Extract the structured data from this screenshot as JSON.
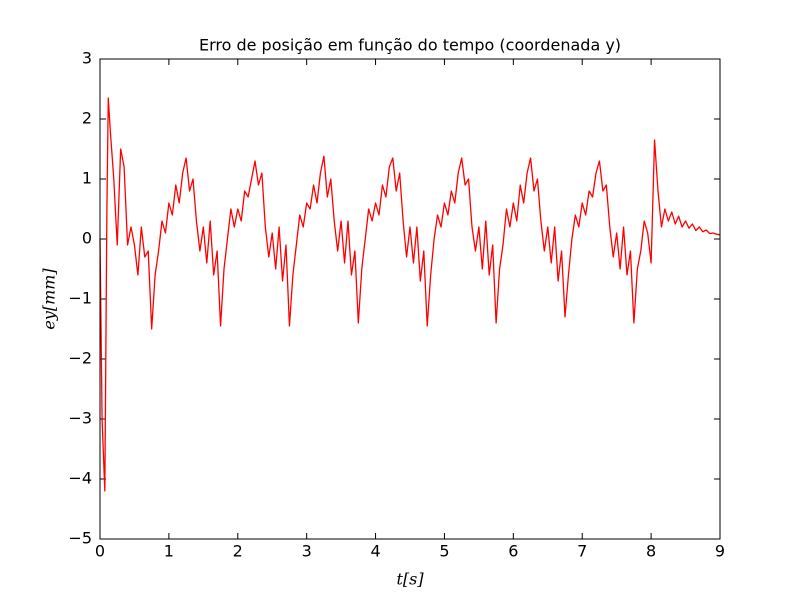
{
  "chart_data": {
    "type": "line",
    "title": "Erro de posição em função do tempo (coordenada y)",
    "xlabel": "t[s]",
    "ylabel": "ey[mm]",
    "color": "#ff0000",
    "xlim": [
      0,
      9
    ],
    "ylim": [
      -5,
      3
    ],
    "xticks": [
      0,
      1,
      2,
      3,
      4,
      5,
      6,
      7,
      8,
      9
    ],
    "yticks": [
      {
        "value": -5,
        "label": "−5"
      },
      {
        "value": -4,
        "label": "−4"
      },
      {
        "value": -3,
        "label": "−3"
      },
      {
        "value": -2,
        "label": "−2"
      },
      {
        "value": -1,
        "label": "−1"
      },
      0,
      1,
      2,
      3
    ],
    "x": [
      0,
      0.03,
      0.07,
      0.1,
      0.12,
      0.15,
      0.2,
      0.25,
      0.3,
      0.35,
      0.4,
      0.45,
      0.5,
      0.55,
      0.6,
      0.65,
      0.7,
      0.75,
      0.8,
      0.85,
      0.9,
      0.95,
      1,
      1.05,
      1.1,
      1.15,
      1.2,
      1.25,
      1.3,
      1.35,
      1.4,
      1.45,
      1.5,
      1.55,
      1.6,
      1.65,
      1.7,
      1.75,
      1.8,
      1.85,
      1.9,
      1.95,
      2,
      2.05,
      2.1,
      2.15,
      2.2,
      2.25,
      2.3,
      2.35,
      2.4,
      2.45,
      2.5,
      2.55,
      2.6,
      2.65,
      2.7,
      2.75,
      2.8,
      2.85,
      2.9,
      2.95,
      3,
      3.05,
      3.1,
      3.15,
      3.2,
      3.25,
      3.3,
      3.35,
      3.4,
      3.45,
      3.5,
      3.55,
      3.6,
      3.65,
      3.7,
      3.75,
      3.8,
      3.85,
      3.9,
      3.95,
      4,
      4.05,
      4.1,
      4.15,
      4.2,
      4.25,
      4.3,
      4.35,
      4.4,
      4.45,
      4.5,
      4.55,
      4.6,
      4.65,
      4.7,
      4.75,
      4.8,
      4.85,
      4.9,
      4.95,
      5,
      5.05,
      5.1,
      5.15,
      5.2,
      5.25,
      5.3,
      5.35,
      5.4,
      5.45,
      5.5,
      5.55,
      5.6,
      5.65,
      5.7,
      5.75,
      5.8,
      5.85,
      5.9,
      5.95,
      6,
      6.05,
      6.1,
      6.15,
      6.2,
      6.25,
      6.3,
      6.35,
      6.4,
      6.45,
      6.5,
      6.55,
      6.6,
      6.65,
      6.7,
      6.75,
      6.8,
      6.85,
      6.9,
      6.95,
      7,
      7.05,
      7.1,
      7.15,
      7.2,
      7.25,
      7.3,
      7.35,
      7.4,
      7.45,
      7.5,
      7.55,
      7.6,
      7.65,
      7.7,
      7.75,
      7.8,
      7.85,
      7.9,
      7.95,
      8,
      8.05,
      8.1,
      8.15,
      8.2,
      8.25,
      8.3,
      8.35,
      8.4,
      8.45,
      8.5,
      8.55,
      8.6,
      8.65,
      8.7,
      8.75,
      8.8,
      8.85,
      8.9,
      8.95,
      9
    ],
    "values": [
      0,
      -3,
      -4.2,
      0.5,
      2.35,
      1.8,
      1.0,
      -0.1,
      1.5,
      1.2,
      -0.1,
      0.2,
      -0.1,
      -0.6,
      0.2,
      -0.3,
      -0.2,
      -1.5,
      -0.6,
      -0.2,
      0.3,
      0.1,
      0.6,
      0.4,
      0.9,
      0.6,
      1.1,
      1.35,
      0.8,
      1.0,
      0.3,
      -0.2,
      0.2,
      -0.4,
      0.3,
      -0.6,
      -0.2,
      -1.45,
      -0.5,
      0.0,
      0.5,
      0.2,
      0.5,
      0.3,
      0.8,
      0.7,
      1.0,
      1.3,
      0.9,
      1.1,
      0.2,
      -0.3,
      0.1,
      -0.5,
      0.2,
      -0.7,
      -0.1,
      -1.45,
      -0.6,
      -0.1,
      0.4,
      0.2,
      0.6,
      0.5,
      0.9,
      0.6,
      1.1,
      1.38,
      0.7,
      1.0,
      0.3,
      -0.2,
      0.3,
      -0.4,
      0.3,
      -0.6,
      -0.2,
      -1.4,
      -0.5,
      0.0,
      0.5,
      0.3,
      0.6,
      0.4,
      0.9,
      0.7,
      1.2,
      1.35,
      0.8,
      1.1,
      0.3,
      -0.3,
      0.2,
      -0.4,
      0.2,
      -0.7,
      -0.2,
      -1.45,
      -0.6,
      0.0,
      0.4,
      0.2,
      0.6,
      0.4,
      0.8,
      0.6,
      1.1,
      1.35,
      0.9,
      1.0,
      0.2,
      -0.2,
      0.2,
      -0.5,
      0.3,
      -0.6,
      -0.1,
      -1.4,
      -0.5,
      -0.1,
      0.5,
      0.2,
      0.6,
      0.3,
      0.9,
      0.6,
      1.1,
      1.35,
      0.8,
      1.0,
      0.3,
      -0.2,
      0.2,
      -0.4,
      0.2,
      -0.7,
      -0.2,
      -1.3,
      -0.6,
      0.0,
      0.4,
      0.2,
      0.6,
      0.4,
      0.8,
      0.7,
      1.1,
      1.3,
      0.8,
      0.9,
      0.2,
      -0.3,
      0.1,
      -0.5,
      0.2,
      -0.6,
      -0.2,
      -1.4,
      -0.5,
      -0.2,
      0.3,
      0.1,
      -0.4,
      1.65,
      0.8,
      0.2,
      0.5,
      0.3,
      0.45,
      0.25,
      0.38,
      0.2,
      0.3,
      0.18,
      0.25,
      0.14,
      0.2,
      0.12,
      0.15,
      0.09,
      0.1,
      0.08,
      0.07
    ]
  }
}
